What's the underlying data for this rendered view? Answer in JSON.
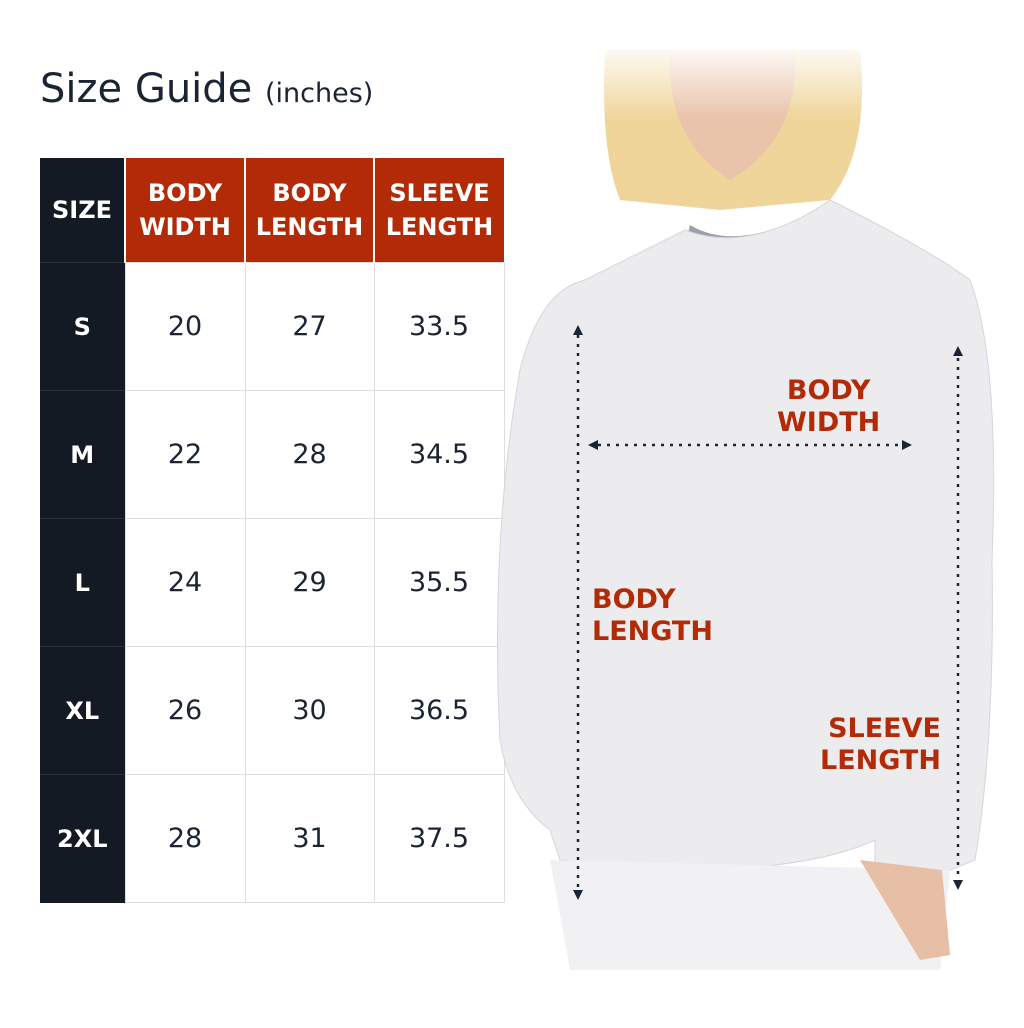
{
  "title": {
    "main": "Size Guide",
    "unit": "(inches)"
  },
  "table": {
    "headers": [
      {
        "line1": "SIZE",
        "line2": ""
      },
      {
        "line1": "BODY",
        "line2": "WIDTH"
      },
      {
        "line1": "BODY",
        "line2": "LENGTH"
      },
      {
        "line1": "SLEEVE",
        "line2": "LENGTH"
      }
    ],
    "rows": [
      [
        "S",
        "20",
        "27",
        "33.5"
      ],
      [
        "M",
        "22",
        "28",
        "34.5"
      ],
      [
        "L",
        "24",
        "29",
        "35.5"
      ],
      [
        "XL",
        "26",
        "30",
        "36.5"
      ],
      [
        "2XL",
        "28",
        "31",
        "37.5"
      ]
    ]
  },
  "diagram": {
    "body_width": {
      "line1": "BODY",
      "line2": "WIDTH"
    },
    "body_length": {
      "line1": "BODY",
      "line2": "LENGTH"
    },
    "sleeve_length": {
      "line1": "SLEEVE",
      "line2": "LENGTH"
    }
  },
  "colors": {
    "header_red": "#b32a07",
    "size_column_navy": "#131a24",
    "text": "#1b2433"
  }
}
